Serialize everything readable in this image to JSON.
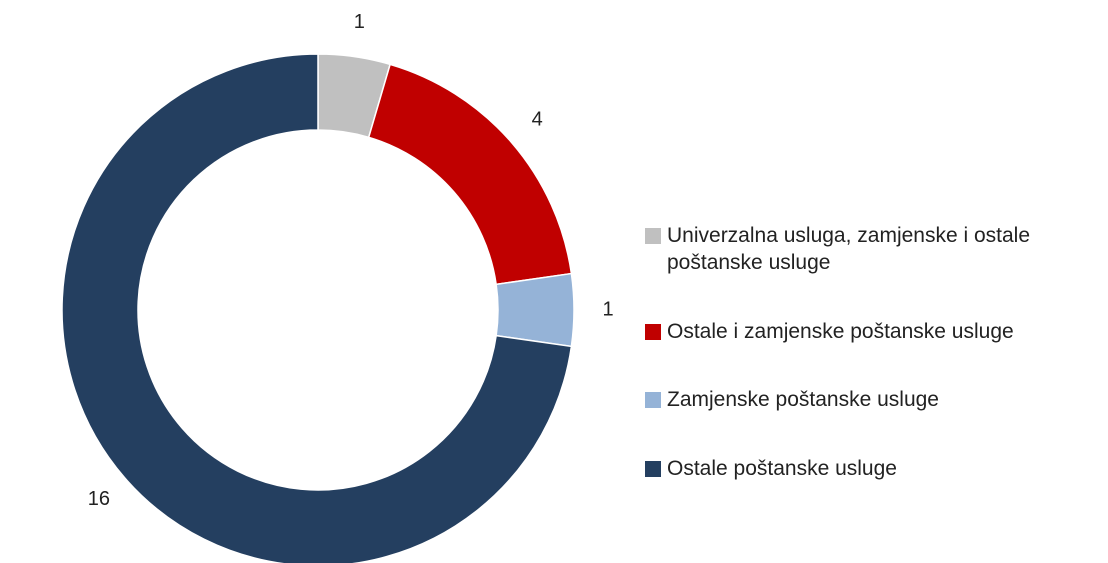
{
  "chart_data": {
    "type": "donut",
    "categories": [
      "Univerzalna usluga, zamjenske i ostale poštanske usluge",
      "Ostale i zamjenske poštanske usluge",
      "Zamjenske poštanske usluge",
      "Ostale poštanske usluge"
    ],
    "values": [
      1,
      4,
      1,
      16
    ],
    "colors": [
      "#c0c0c0",
      "#c00000",
      "#95b3d7",
      "#243f60"
    ],
    "legend": "right"
  }
}
